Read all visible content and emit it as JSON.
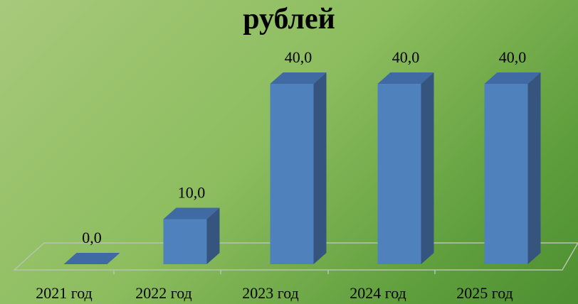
{
  "chart_data": {
    "type": "bar",
    "title": "рублей",
    "categories": [
      "2021 год",
      "2022 год",
      "2023 год",
      "2024 год",
      "2025 год"
    ],
    "values": [
      0.0,
      10.0,
      40.0,
      40.0,
      40.0
    ],
    "data_labels": [
      "0,0",
      "10,0",
      "40,0",
      "40,0",
      "40,0"
    ],
    "ylim": [
      0,
      40
    ],
    "grid": false,
    "legend": "none",
    "bar_colors": {
      "front": "#4f81bd",
      "side": "#35547e",
      "top": "#3f6aa3"
    },
    "floor_color": "#b7c4ad"
  }
}
